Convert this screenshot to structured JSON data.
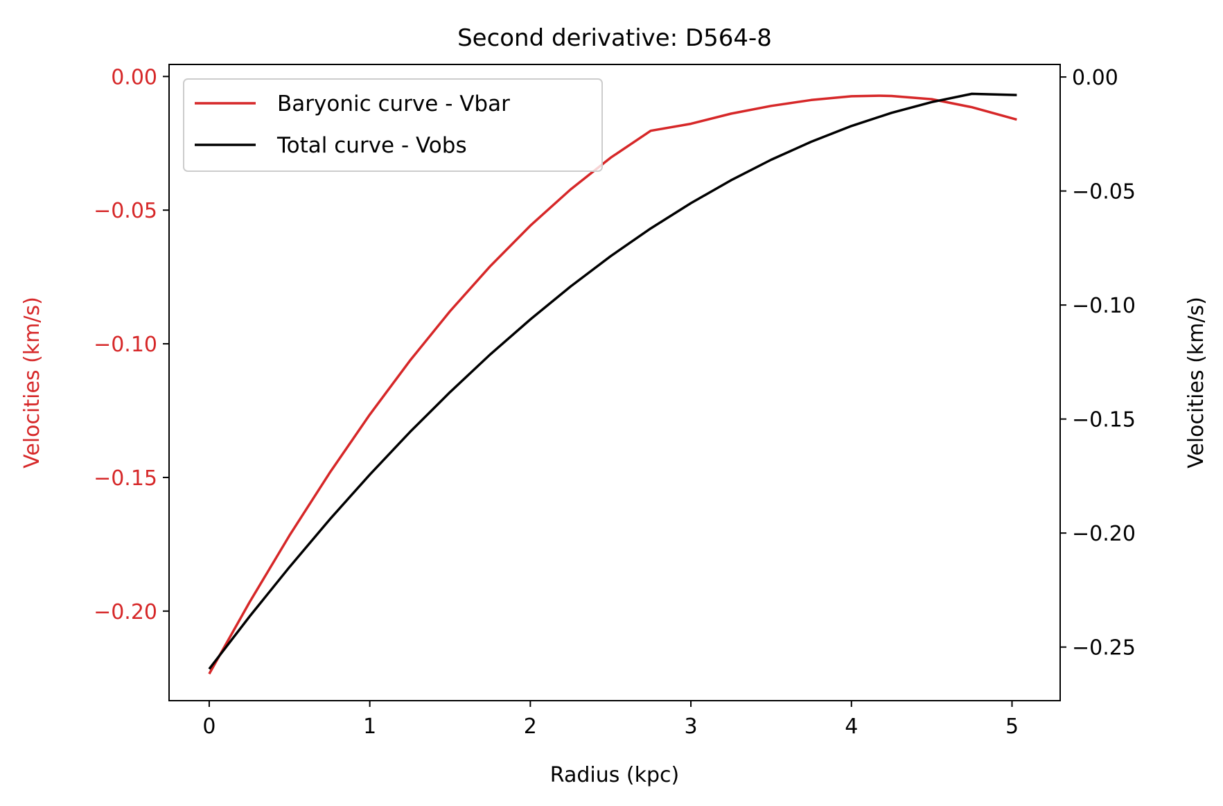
{
  "chart_data": {
    "type": "line",
    "title": "Second derivative: D564-8",
    "xlabel": "Radius (kpc)",
    "ylabel_left": "Velocities (km/s)",
    "ylabel_right": "Velocities (km/s)",
    "xlim": [
      -0.25,
      5.3
    ],
    "ylim_left": [
      -0.2335,
      0.0045
    ],
    "ylim_right": [
      -0.2735,
      0.0055
    ],
    "xticks": [
      0,
      1,
      2,
      3,
      4,
      5
    ],
    "xtick_labels": [
      "0",
      "1",
      "2",
      "3",
      "4",
      "5"
    ],
    "yticks_left": [
      0.0,
      -0.05,
      -0.1,
      -0.15,
      -0.2
    ],
    "ytick_labels_left": [
      "0.00",
      "−0.05",
      "−0.10",
      "−0.15",
      "−0.20"
    ],
    "yticks_right": [
      0.0,
      -0.05,
      -0.1,
      -0.15,
      -0.2,
      -0.25
    ],
    "ytick_labels_right": [
      "0.00",
      "−0.05",
      "−0.10",
      "−0.15",
      "−0.20",
      "−0.25"
    ],
    "legend_position": "upper-left",
    "grid": false,
    "left_axis_color": "#d62728",
    "series": [
      {
        "name": "Baryonic curve - Vbar",
        "axis": "left",
        "color": "#d62728",
        "x": [
          0.0,
          0.25,
          0.5,
          0.75,
          1.0,
          1.25,
          1.5,
          1.75,
          2.0,
          2.25,
          2.5,
          2.75,
          3.0,
          3.25,
          3.5,
          3.75,
          4.0,
          4.17,
          4.25,
          4.5,
          4.75,
          5.03
        ],
        "y": [
          -0.2235,
          -0.1968,
          -0.1717,
          -0.1483,
          -0.1265,
          -0.1063,
          -0.0878,
          -0.071,
          -0.0558,
          -0.0423,
          -0.0304,
          -0.0203,
          -0.0177,
          -0.0139,
          -0.011,
          -0.0088,
          -0.0074,
          -0.0072,
          -0.0073,
          -0.0085,
          -0.0115,
          -0.0161
        ]
      },
      {
        "name": "Total curve - Vobs",
        "axis": "right",
        "color": "#000000",
        "x": [
          0.0,
          0.25,
          0.5,
          0.75,
          1.0,
          1.25,
          1.5,
          1.75,
          2.0,
          2.25,
          2.5,
          2.75,
          3.0,
          3.25,
          3.5,
          3.75,
          4.0,
          4.25,
          4.5,
          4.75,
          5.03
        ],
        "y": [
          -0.2596,
          -0.2367,
          -0.2149,
          -0.1941,
          -0.1744,
          -0.1557,
          -0.1382,
          -0.1217,
          -0.1063,
          -0.0919,
          -0.0786,
          -0.0664,
          -0.0553,
          -0.0453,
          -0.0363,
          -0.0284,
          -0.0215,
          -0.0157,
          -0.011,
          -0.0074,
          -0.0079
        ]
      }
    ]
  }
}
